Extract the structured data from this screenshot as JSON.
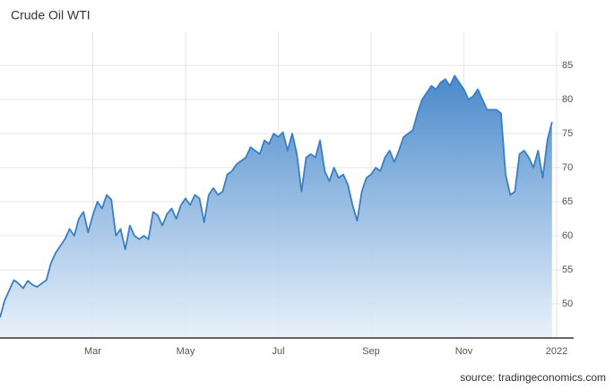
{
  "chart_data": {
    "type": "area",
    "title": "Crude Oil WTI",
    "source": "source: tradingeconomics.com",
    "categories": [
      null,
      null,
      null,
      null,
      null,
      null,
      null,
      null,
      null,
      null,
      null,
      null,
      null,
      null,
      null,
      null,
      null,
      null,
      null,
      null,
      "Mar",
      null,
      null,
      null,
      null,
      null,
      null,
      null,
      null,
      null,
      null,
      null,
      null,
      null,
      null,
      null,
      null,
      null,
      null,
      null,
      "May",
      null,
      null,
      null,
      null,
      null,
      null,
      null,
      null,
      null,
      null,
      null,
      null,
      null,
      null,
      null,
      null,
      null,
      null,
      null,
      "Jul",
      null,
      null,
      null,
      null,
      null,
      null,
      null,
      null,
      null,
      null,
      null,
      null,
      null,
      null,
      null,
      null,
      null,
      null,
      null,
      "Sep",
      null,
      null,
      null,
      null,
      null,
      null,
      null,
      null,
      null,
      null,
      null,
      null,
      null,
      null,
      null,
      null,
      null,
      null,
      null,
      "Nov",
      null,
      null,
      null,
      null,
      null,
      null,
      null,
      null,
      null,
      null,
      null,
      null,
      null,
      null,
      null,
      null,
      null,
      null,
      null,
      "2022"
    ],
    "values": [
      48,
      50.5,
      52,
      53.5,
      53,
      52.3,
      53.4,
      52.8,
      52.5,
      53,
      53.5,
      56,
      57.5,
      58.5,
      59.5,
      61,
      60,
      62.5,
      63.5,
      60.5,
      63,
      65,
      64,
      66,
      65.3,
      60,
      61,
      58,
      61.5,
      60,
      59.5,
      60,
      59.5,
      63.5,
      63,
      61.5,
      63.2,
      64,
      62.5,
      64.5,
      65.5,
      64.5,
      66,
      65.5,
      62,
      66,
      67,
      66,
      66.5,
      69,
      69.5,
      70.5,
      71,
      71.5,
      73,
      72.5,
      72,
      74,
      73.5,
      75,
      74.5,
      75.2,
      72.5,
      75,
      72,
      66.5,
      71.5,
      72,
      71.5,
      74,
      69.5,
      68,
      70,
      68.5,
      69,
      67.5,
      64.5,
      62.2,
      66.5,
      68.5,
      69,
      70,
      69.5,
      71.5,
      72.5,
      70.8,
      72.5,
      74.5,
      75,
      75.5,
      78,
      80,
      81,
      82,
      81.5,
      82.5,
      83,
      82,
      83.5,
      82.5,
      81.5,
      80,
      80.5,
      81.5,
      80,
      78.5,
      78.5,
      78.5,
      78,
      69,
      66,
      66.5,
      72,
      72.5,
      71.5,
      70,
      72.5,
      68.5,
      74,
      76.7,
      null
    ],
    "color": "#3a7fc4",
    "ylim": [
      45,
      90
    ],
    "yticks": [
      50,
      55,
      60,
      65,
      70,
      75,
      80,
      85
    ],
    "grid": true
  }
}
